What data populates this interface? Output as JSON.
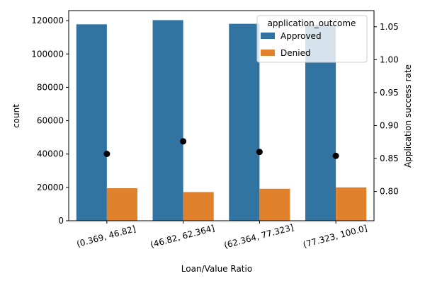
{
  "chart_data": {
    "type": "bar",
    "xlabel": "Loan/Value Ratio",
    "ylabel": "count",
    "y2label": "Application success rate",
    "categories": [
      "(0.369, 46.82]",
      "(46.82, 62.364]",
      "(62.364, 77.323]",
      "(77.323, 100.0]"
    ],
    "series": [
      {
        "name": "Approved",
        "color": "#3274a1",
        "values": [
          117800,
          120300,
          118100,
          117500
        ]
      },
      {
        "name": "Denied",
        "color": "#e1812c",
        "values": [
          19500,
          17200,
          19200,
          20000
        ]
      }
    ],
    "secondary_series": {
      "type": "scatter",
      "color": "#000000",
      "values": [
        0.857,
        0.876,
        0.86,
        0.854
      ]
    },
    "legend": {
      "title": "application_outcome",
      "placement": "top-right"
    },
    "ylim": [
      0,
      126000
    ],
    "y_ticks": [
      0,
      20000,
      40000,
      60000,
      80000,
      100000,
      120000
    ],
    "y2lim": [
      0.7555,
      1.0745
    ],
    "y2_ticks": [
      0.8,
      0.85,
      0.9,
      0.95,
      1.0,
      1.05
    ],
    "y2_tick_labels": [
      "0.80",
      "0.85",
      "0.90",
      "0.95",
      "1.00",
      "1.05"
    ],
    "grid": false
  }
}
